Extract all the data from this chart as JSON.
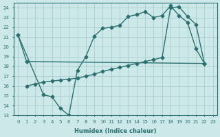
{
  "xlabel": "Humidex (Indice chaleur)",
  "background_color": "#cce8e8",
  "grid_color": "#aacccc",
  "line_color": "#2a7070",
  "xlim": [
    -0.5,
    23.5
  ],
  "ylim": [
    13,
    24.5
  ],
  "yticks": [
    13,
    14,
    15,
    16,
    17,
    18,
    19,
    20,
    21,
    22,
    23,
    24
  ],
  "xticks": [
    0,
    1,
    2,
    3,
    4,
    5,
    6,
    7,
    8,
    9,
    10,
    11,
    12,
    13,
    14,
    15,
    16,
    17,
    18,
    19,
    20,
    21,
    22,
    23
  ],
  "line1_x": [
    0,
    1,
    22
  ],
  "line1_y": [
    21.2,
    18.5,
    18.3
  ],
  "line2_x": [
    0,
    3,
    4,
    5,
    6,
    7,
    8,
    9,
    10,
    11,
    12,
    13,
    14,
    15,
    16,
    17,
    18,
    19,
    20,
    21,
    22
  ],
  "line2_y": [
    21.2,
    15.1,
    14.9,
    13.7,
    13.0,
    17.6,
    19.0,
    21.1,
    21.9,
    22.0,
    22.2,
    23.1,
    23.3,
    23.6,
    23.0,
    23.2,
    24.2,
    23.2,
    22.5,
    19.8,
    18.3
  ],
  "line3_x": [
    1,
    2,
    3,
    4,
    5,
    6,
    7,
    8,
    9,
    10,
    11,
    12,
    13,
    14,
    15,
    16,
    17,
    18,
    19,
    20,
    21,
    22
  ],
  "line3_y": [
    16.0,
    16.2,
    16.4,
    16.5,
    16.6,
    16.7,
    16.8,
    17.0,
    17.2,
    17.5,
    17.7,
    17.9,
    18.1,
    18.3,
    18.5,
    18.7,
    18.9,
    24.0,
    24.1,
    23.1,
    22.3,
    18.3
  ]
}
